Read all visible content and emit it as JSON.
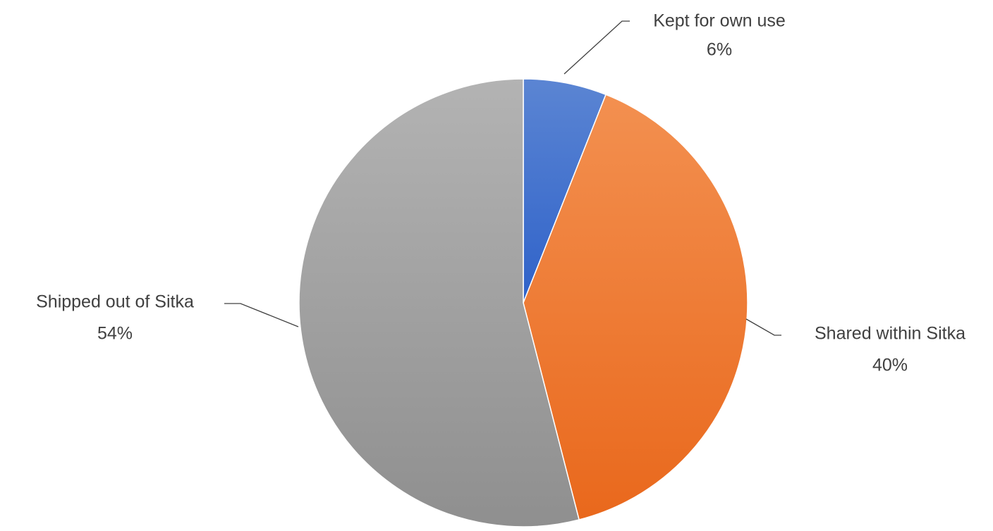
{
  "chart_data": {
    "type": "pie",
    "title": "",
    "start_angle_deg": 0,
    "direction": "clockwise",
    "legend": "none",
    "slices": [
      {
        "label": "Kept for own use",
        "value": 6,
        "value_label": "6%",
        "color": "#4472C4",
        "color_light": "#5B85D3",
        "color_dark": "#2F62C9"
      },
      {
        "label": "Shared within Sitka",
        "value": 40,
        "value_label": "40%",
        "color": "#ED7D31",
        "color_light": "#F39050",
        "color_dark": "#E9681C"
      },
      {
        "label": "Shipped out of Sitka",
        "value": 54,
        "value_label": "54%",
        "color": "#A5A5A5",
        "color_light": "#B3B3B3",
        "color_dark": "#8F8F8F"
      }
    ]
  }
}
